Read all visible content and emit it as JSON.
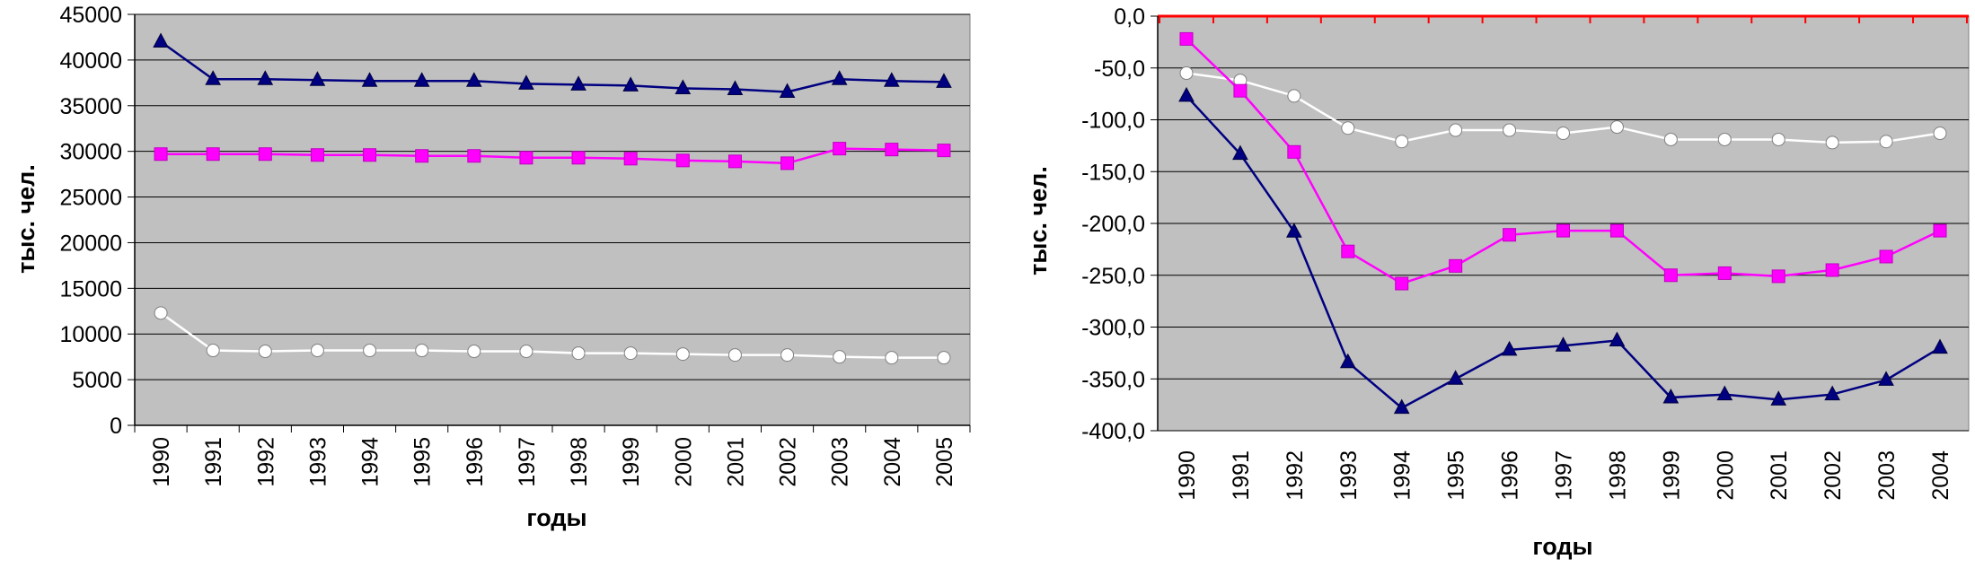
{
  "chart_data": [
    {
      "type": "line",
      "title": "",
      "xlabel": "годы",
      "ylabel": "тыс. чел.",
      "x": [
        "1990",
        "1991",
        "1992",
        "1993",
        "1994",
        "1995",
        "1996",
        "1997",
        "1998",
        "1999",
        "2000",
        "2001",
        "2002",
        "2003",
        "2004",
        "2005"
      ],
      "ylim": [
        0,
        45000
      ],
      "yticks": [
        "0",
        "5000",
        "10000",
        "15000",
        "20000",
        "25000",
        "30000",
        "35000",
        "40000",
        "45000"
      ],
      "grid": true,
      "legend": "none",
      "series": [
        {
          "marker": "triangle",
          "color": "#000080",
          "values": [
            42000,
            37900,
            37900,
            37800,
            37700,
            37700,
            37700,
            37400,
            37300,
            37200,
            36900,
            36800,
            36500,
            37900,
            37700,
            37600
          ]
        },
        {
          "marker": "square",
          "color": "#ff00ff",
          "values": [
            29700,
            29700,
            29700,
            29600,
            29600,
            29500,
            29500,
            29300,
            29300,
            29200,
            29000,
            28900,
            28700,
            30300,
            30200,
            30100
          ]
        },
        {
          "marker": "circle",
          "color": "#ffffff",
          "values": [
            12300,
            8200,
            8100,
            8200,
            8200,
            8200,
            8100,
            8100,
            7900,
            7900,
            7800,
            7700,
            7700,
            7500,
            7400,
            7400
          ]
        }
      ]
    },
    {
      "type": "line",
      "title": "",
      "xlabel": "годы",
      "ylabel": "тыс. чел.",
      "x": [
        "1990",
        "1991",
        "1992",
        "1993",
        "1994",
        "1995",
        "1996",
        "1997",
        "1998",
        "1999",
        "2000",
        "2001",
        "2002",
        "2003",
        "2004"
      ],
      "ylim": [
        -400,
        0
      ],
      "yticks": [
        "0,0",
        "-50,0",
        "-100,0",
        "-150,0",
        "-200,0",
        "-250,0",
        "-300,0",
        "-350,0",
        "-400,0"
      ],
      "grid": true,
      "legend": "none",
      "series": [
        {
          "marker": "circle",
          "color": "#ffffff",
          "values": [
            -55,
            -62,
            -77,
            -108,
            -121,
            -110,
            -110,
            -113,
            -107,
            -119,
            -119,
            -119,
            -122,
            -121,
            -113
          ]
        },
        {
          "marker": "square",
          "color": "#ff00ff",
          "values": [
            -22,
            -72,
            -131,
            -227,
            -258,
            -241,
            -211,
            -207,
            -207,
            -250,
            -248,
            -251,
            -245,
            -232,
            -207
          ]
        },
        {
          "marker": "triangle",
          "color": "#000080",
          "values": [
            -77,
            -133,
            -208,
            -334,
            -378,
            -350,
            -322,
            -318,
            -313,
            -368,
            -365,
            -370,
            -365,
            -351,
            -320
          ]
        }
      ]
    }
  ]
}
